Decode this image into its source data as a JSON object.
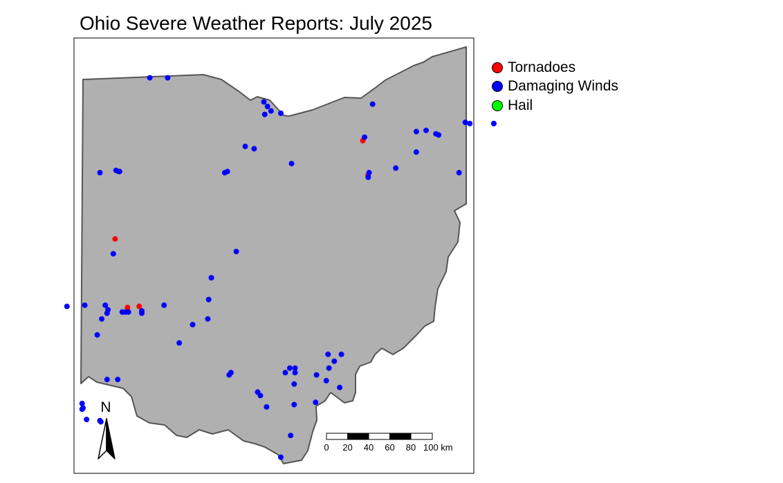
{
  "title": "Ohio Severe Weather Reports: July 2025",
  "legend": [
    {
      "label": "Tornadoes",
      "color": "#ff0000"
    },
    {
      "label": "Damaging Winds",
      "color": "#0000ff"
    },
    {
      "label": "Hail",
      "color": "#00ff00"
    }
  ],
  "colors": {
    "state_fill": "#b0b0b0",
    "state_border": "#555555",
    "frame": "#000000"
  },
  "north_arrow": {
    "label": "N"
  },
  "scale_bar": {
    "ticks": [
      "0",
      "20",
      "40",
      "60",
      "80",
      "100 km"
    ]
  },
  "reports": {
    "tornadoes": [
      [
        -84.46,
        40.3
      ],
      [
        -84.32,
        39.7
      ],
      [
        -84.19,
        39.71
      ],
      [
        -81.68,
        41.16
      ],
      [
        -81.62,
        40.86
      ]
    ],
    "damaging_winds": [
      [
        -84.07,
        41.71
      ],
      [
        -83.87,
        41.71
      ],
      [
        -82.79,
        41.5
      ],
      [
        -82.75,
        41.46
      ],
      [
        -82.71,
        41.42
      ],
      [
        -82.78,
        41.39
      ],
      [
        -82.6,
        41.4
      ],
      [
        -83.0,
        41.11
      ],
      [
        -82.9,
        41.09
      ],
      [
        -82.48,
        40.96
      ],
      [
        -83.23,
        40.88
      ],
      [
        -83.2,
        40.89
      ],
      [
        -84.63,
        40.88
      ],
      [
        -84.45,
        40.9
      ],
      [
        -84.42,
        40.89
      ],
      [
        -84.41,
        40.89
      ],
      [
        -81.66,
        41.19
      ],
      [
        -81.57,
        41.48
      ],
      [
        -81.31,
        40.92
      ],
      [
        -81.08,
        41.24
      ],
      [
        -80.97,
        41.25
      ],
      [
        -80.86,
        41.22
      ],
      [
        -80.83,
        41.21
      ],
      [
        -80.53,
        41.32
      ],
      [
        -80.48,
        41.31
      ],
      [
        -80.21,
        41.31
      ],
      [
        -80.21,
        41.31
      ],
      [
        -81.08,
        41.06
      ],
      [
        -80.6,
        40.88
      ],
      [
        -81.62,
        40.84
      ],
      [
        -81.61,
        40.88
      ],
      [
        -84.48,
        40.17
      ],
      [
        -83.1,
        40.19
      ],
      [
        -83.38,
        39.96
      ],
      [
        -83.41,
        39.77
      ],
      [
        -83.42,
        39.6
      ],
      [
        -83.59,
        39.55
      ],
      [
        -83.74,
        39.39
      ],
      [
        -83.91,
        39.72
      ],
      [
        -85.0,
        39.71
      ],
      [
        -84.8,
        39.72
      ],
      [
        -84.57,
        39.72
      ],
      [
        -84.54,
        39.68
      ],
      [
        -84.55,
        39.65
      ],
      [
        -84.61,
        39.6
      ],
      [
        -84.38,
        39.66
      ],
      [
        -84.37,
        39.66
      ],
      [
        -84.34,
        39.66
      ],
      [
        -84.31,
        39.66
      ],
      [
        -84.16,
        39.67
      ],
      [
        -84.16,
        39.65
      ],
      [
        -84.66,
        39.46
      ],
      [
        -84.55,
        39.07
      ],
      [
        -84.43,
        39.07
      ],
      [
        -84.83,
        38.86
      ],
      [
        -84.82,
        38.82
      ],
      [
        -84.83,
        38.81
      ],
      [
        -84.78,
        38.72
      ],
      [
        -84.63,
        38.71
      ],
      [
        -84.62,
        38.7
      ],
      [
        -83.18,
        39.11
      ],
      [
        -83.16,
        39.13
      ],
      [
        -82.86,
        38.96
      ],
      [
        -82.83,
        38.93
      ],
      [
        -82.76,
        38.83
      ],
      [
        -82.55,
        39.13
      ],
      [
        -82.5,
        39.17
      ],
      [
        -82.44,
        39.13
      ],
      [
        -82.44,
        39.17
      ],
      [
        -82.45,
        39.03
      ],
      [
        -82.45,
        38.85
      ],
      [
        -82.49,
        38.58
      ],
      [
        -82.2,
        39.11
      ],
      [
        -82.09,
        39.06
      ],
      [
        -82.07,
        39.29
      ],
      [
        -82.06,
        39.17
      ],
      [
        -82.0,
        39.23
      ],
      [
        -81.92,
        39.29
      ],
      [
        -81.94,
        39.0
      ],
      [
        -82.21,
        38.87
      ],
      [
        -82.6,
        38.39
      ],
      [
        -82.75,
        38.05
      ],
      [
        -82.57,
        38.07
      ],
      [
        -82.53,
        38.09
      ],
      [
        -82.51,
        38.1
      ],
      [
        -82.49,
        38.12
      ],
      [
        -82.49,
        38.1
      ],
      [
        -82.5,
        38.09
      ]
    ],
    "hail": []
  }
}
